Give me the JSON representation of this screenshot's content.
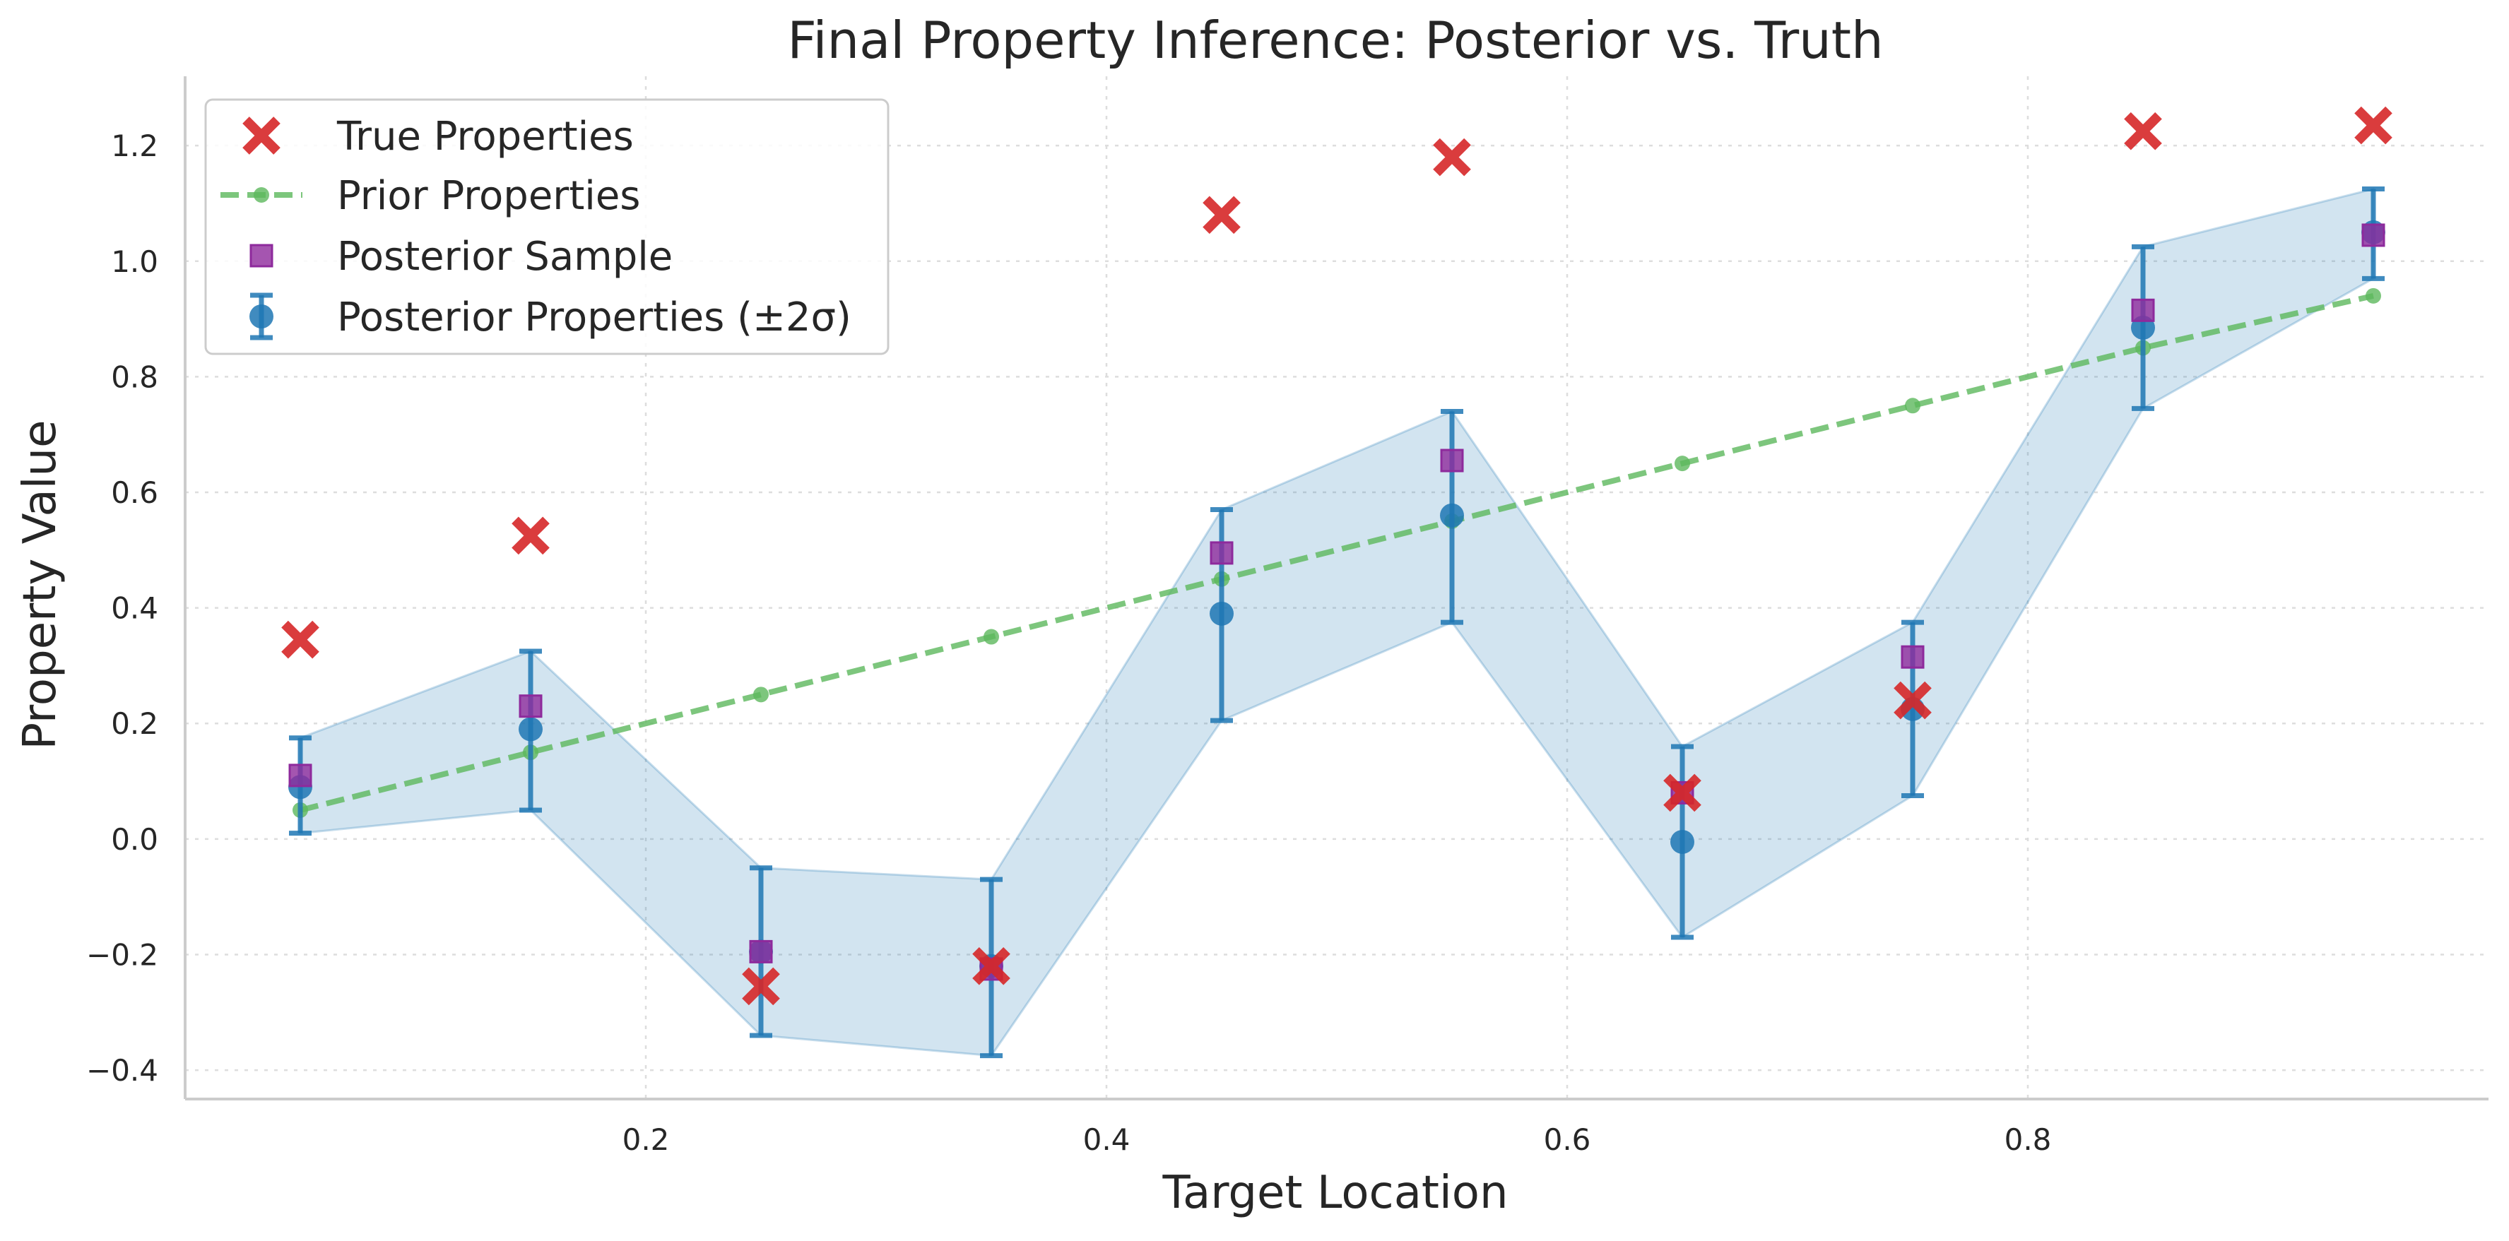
{
  "chart_data": {
    "type": "scatter",
    "title": "Final Property Inference: Posterior vs. Truth",
    "xlabel": "Target Location",
    "ylabel": "Property Value",
    "xlim": [
      0.0,
      1.0
    ],
    "ylim": [
      -0.45,
      1.32
    ],
    "x_ticks": [
      0.2,
      0.4,
      0.6,
      0.8
    ],
    "x_tick_labels": [
      "0.2",
      "0.4",
      "0.6",
      "0.8"
    ],
    "y_ticks": [
      -0.4,
      -0.2,
      0.0,
      0.2,
      0.4,
      0.6,
      0.8,
      1.0,
      1.2
    ],
    "y_tick_labels": [
      "−0.4",
      "−0.2",
      "0.0",
      "0.2",
      "0.4",
      "0.6",
      "0.8",
      "1.0",
      "1.2"
    ],
    "grid": true,
    "legend_position": "top-left",
    "x": [
      0.05,
      0.15,
      0.25,
      0.35,
      0.45,
      0.55,
      0.65,
      0.75,
      0.85,
      0.95
    ],
    "series": [
      {
        "name": "True Properties",
        "kind": "marker-x",
        "color": "#d62728",
        "values": [
          0.345,
          0.525,
          -0.255,
          -0.22,
          1.08,
          1.18,
          0.08,
          0.24,
          1.225,
          1.235
        ]
      },
      {
        "name": "Prior Properties",
        "kind": "dashed-line",
        "color": "#5cb85c",
        "values": [
          0.05,
          0.15,
          0.25,
          0.35,
          0.45,
          0.55,
          0.65,
          0.75,
          0.85,
          0.94
        ]
      },
      {
        "name": "Posterior Sample",
        "kind": "marker-square",
        "color": "#8e2a9c",
        "values": [
          0.11,
          0.23,
          -0.195,
          -0.225,
          0.495,
          0.655,
          0.08,
          0.315,
          0.915,
          1.045
        ]
      },
      {
        "name": "Posterior Properties (±2σ)",
        "kind": "errorbar",
        "color": "#1f77b4",
        "values": [
          0.09,
          0.19,
          -0.195,
          -0.22,
          0.39,
          0.56,
          -0.005,
          0.225,
          0.885,
          1.05
        ],
        "lower": [
          0.01,
          0.05,
          -0.34,
          -0.375,
          0.205,
          0.375,
          -0.17,
          0.075,
          0.745,
          0.97
        ],
        "upper": [
          0.175,
          0.325,
          -0.05,
          -0.07,
          0.57,
          0.74,
          0.16,
          0.375,
          1.025,
          1.125
        ]
      }
    ]
  }
}
